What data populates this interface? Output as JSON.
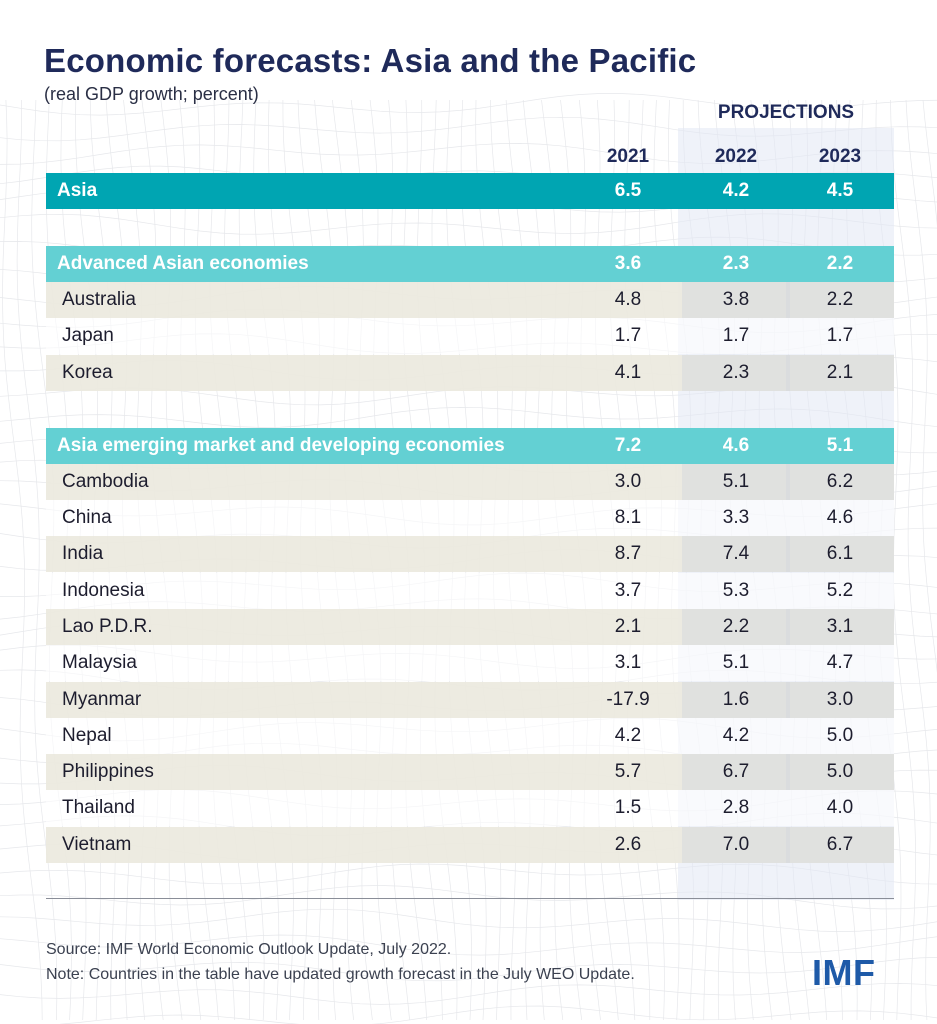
{
  "chart_data": {
    "type": "table",
    "title": "Economic forecasts: Asia and the Pacific",
    "subtitle": "(real GDP growth; percent)",
    "projections_label": "PROJECTIONS",
    "columns": [
      "2021",
      "2022",
      "2023"
    ],
    "rows": [
      {
        "name": "Asia",
        "kind": "main",
        "values": [
          "6.5",
          "4.2",
          "4.5"
        ]
      },
      {
        "name": "Advanced Asian economies",
        "kind": "group",
        "values": [
          "3.6",
          "2.3",
          "2.2"
        ]
      },
      {
        "name": "Australia",
        "kind": "band",
        "values": [
          "4.8",
          "3.8",
          "2.2"
        ]
      },
      {
        "name": "Japan",
        "kind": "plain",
        "values": [
          "1.7",
          "1.7",
          "1.7"
        ]
      },
      {
        "name": "Korea",
        "kind": "band",
        "values": [
          "4.1",
          "2.3",
          "2.1"
        ]
      },
      {
        "name": "Asia emerging market and developing economies",
        "kind": "group",
        "values": [
          "7.2",
          "4.6",
          "5.1"
        ]
      },
      {
        "name": "Cambodia",
        "kind": "band",
        "values": [
          "3.0",
          "5.1",
          "6.2"
        ]
      },
      {
        "name": "China",
        "kind": "plain",
        "values": [
          "8.1",
          "3.3",
          "4.6"
        ]
      },
      {
        "name": "India",
        "kind": "band",
        "values": [
          "8.7",
          "7.4",
          "6.1"
        ]
      },
      {
        "name": "Indonesia",
        "kind": "plain",
        "values": [
          "3.7",
          "5.3",
          "5.2"
        ]
      },
      {
        "name": "Lao P.D.R.",
        "kind": "band",
        "values": [
          "2.1",
          "2.2",
          "3.1"
        ]
      },
      {
        "name": "Malaysia",
        "kind": "plain",
        "values": [
          "3.1",
          "5.1",
          "4.7"
        ]
      },
      {
        "name": "Myanmar",
        "kind": "band",
        "values": [
          "-17.9",
          "1.6",
          "3.0"
        ]
      },
      {
        "name": "Nepal",
        "kind": "plain",
        "values": [
          "4.2",
          "4.2",
          "5.0"
        ]
      },
      {
        "name": "Philippines",
        "kind": "band",
        "values": [
          "5.7",
          "6.7",
          "5.0"
        ]
      },
      {
        "name": "Thailand",
        "kind": "plain",
        "values": [
          "1.5",
          "2.8",
          "4.0"
        ]
      },
      {
        "name": "Vietnam",
        "kind": "band",
        "values": [
          "2.6",
          "7.0",
          "6.7"
        ]
      }
    ]
  },
  "footer": {
    "source": "Source: IMF World Economic Outlook Update, July 2022.",
    "note": "Note: Countries in the table have updated growth forecast in the July WEO Update."
  },
  "logo": {
    "text": "IMF"
  },
  "colors": {
    "title": "#1f2a5a",
    "asia_row": "#00a5b2",
    "group_row": "#63d0d3",
    "band_row": "#ece9df",
    "projection_shade": "#e1e8f4",
    "logo": "#1e5aa8"
  }
}
